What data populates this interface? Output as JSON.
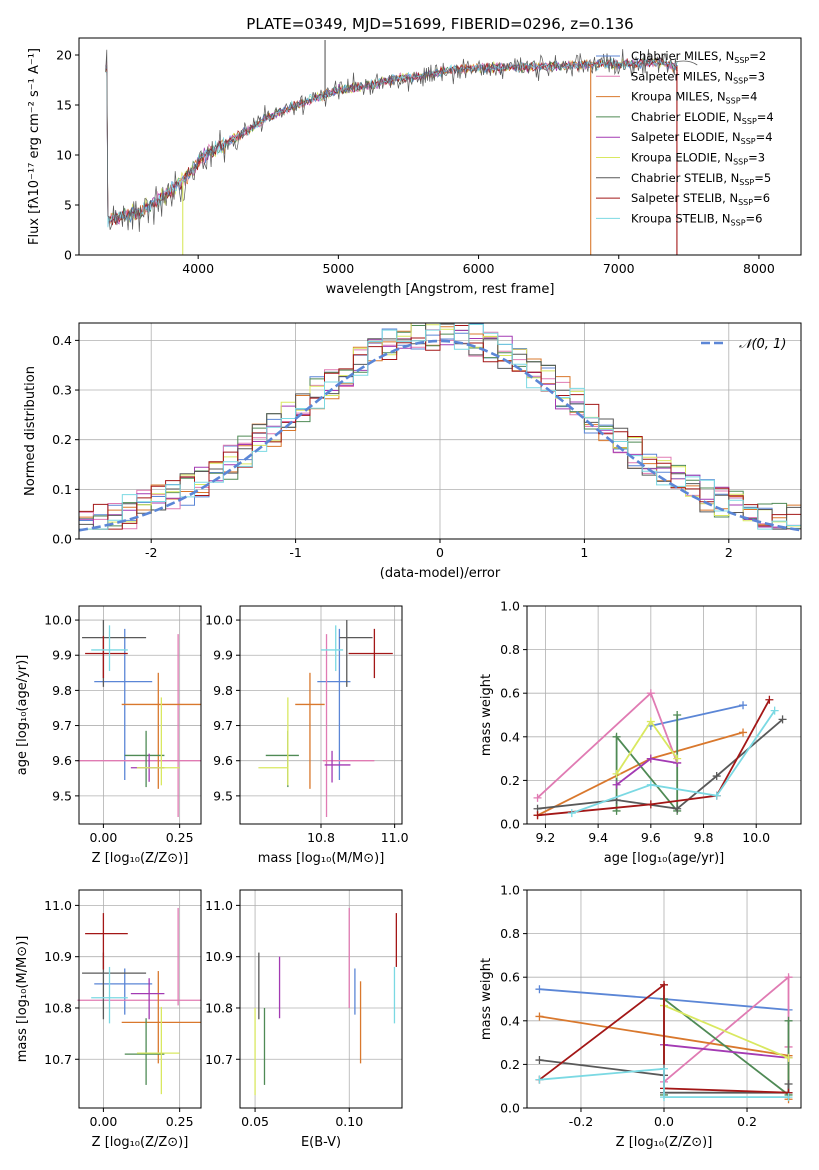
{
  "title": "PLATE=0349, MJD=51699, FIBERID=0296, z=0.136",
  "colors": {
    "chabrier_miles": "#5b86d6",
    "salpeter_miles": "#e07bb3",
    "kroupa_miles": "#d9782d",
    "chabrier_elodie": "#4f8a55",
    "salpeter_elodie": "#a33ab3",
    "kroupa_elodie": "#d9e860",
    "chabrier_stelib": "#595959",
    "salpeter_stelib": "#a31717",
    "kroupa_stelib": "#7bd9e3",
    "normal_curve": "#5b86d6"
  },
  "chart_data": [
    {
      "id": "spectrum",
      "type": "line",
      "xlabel": "wavelength [Angstrom, rest frame]",
      "ylabel": "Flux [fλ10⁻¹⁷ erg cm⁻² s⁻¹ A⁻¹]",
      "xlim": [
        3150,
        8300
      ],
      "ylim": [
        0,
        21.7
      ],
      "xticks": [
        4000,
        5000,
        6000,
        7000,
        8000
      ],
      "yticks": [
        0,
        5,
        10,
        15,
        20
      ],
      "continuum": {
        "x": [
          3350,
          3600,
          3900,
          4050,
          4300,
          4500,
          4800,
          5000,
          5200,
          5400,
          5600,
          5800,
          6000,
          6300,
          6600,
          6900,
          7100,
          7300,
          7400
        ],
        "y": [
          3.5,
          4.4,
          7.5,
          10.0,
          12.0,
          13.8,
          15.5,
          16.5,
          16.9,
          17.6,
          17.9,
          18.5,
          18.7,
          18.8,
          18.9,
          19.1,
          19.1,
          19.3,
          18.8
        ]
      },
      "spikes": [
        {
          "x": 4905,
          "y": 21.5
        },
        {
          "x": 6800,
          "y": 0
        },
        {
          "x": 7415,
          "y": 0
        },
        {
          "x": 3890,
          "y": 0
        }
      ],
      "legend_position": "upper right",
      "legend": [
        {
          "label": "Chabrier MILES, N",
          "sub": "SSP",
          "eq": "=2",
          "color_key": "chabrier_miles"
        },
        {
          "label": "Salpeter MILES, N",
          "sub": "SSP",
          "eq": "=3",
          "color_key": "salpeter_miles"
        },
        {
          "label": "Kroupa MILES, N",
          "sub": "SSP",
          "eq": "=4",
          "color_key": "kroupa_miles"
        },
        {
          "label": "Chabrier ELODIE, N",
          "sub": "SSP",
          "eq": "=4",
          "color_key": "chabrier_elodie"
        },
        {
          "label": "Salpeter ELODIE, N",
          "sub": "SSP",
          "eq": "=4",
          "color_key": "salpeter_elodie"
        },
        {
          "label": "Kroupa ELODIE, N",
          "sub": "SSP",
          "eq": "=3",
          "color_key": "kroupa_elodie"
        },
        {
          "label": "Chabrier STELIB, N",
          "sub": "SSP",
          "eq": "=5",
          "color_key": "chabrier_stelib"
        },
        {
          "label": "Salpeter STELIB, N",
          "sub": "SSP",
          "eq": "=6",
          "color_key": "salpeter_stelib"
        },
        {
          "label": "Kroupa STELIB, N",
          "sub": "SSP",
          "eq": "=6",
          "color_key": "kroupa_stelib"
        }
      ]
    },
    {
      "id": "residuals",
      "type": "step",
      "xlabel": "(data-model)/error",
      "ylabel": "Normed distribution",
      "xlim": [
        -2.5,
        2.5
      ],
      "ylim": [
        0,
        0.435
      ],
      "xticks": [
        -2,
        -1,
        0,
        1,
        2
      ],
      "yticks": [
        0.0,
        0.1,
        0.2,
        0.3,
        0.4
      ],
      "bin_width": 0.1,
      "legend": [
        {
          "label": "𝒩(0, 1)",
          "color_key": "normal_curve",
          "style": "dashed"
        }
      ],
      "legend_position": "upper right"
    },
    {
      "id": "age_vs_Z",
      "type": "errorbar",
      "xlabel": "Z [log₁₀(Z/Z⊙)]",
      "ylabel": "age  [log₁₀(age/yr)]",
      "xlim": [
        -0.08,
        0.32
      ],
      "ylim": [
        9.42,
        10.04
      ],
      "xticks": [
        0.0,
        0.25
      ],
      "yticks": [
        9.5,
        9.6,
        9.7,
        9.8,
        9.9,
        10.0
      ],
      "points": [
        {
          "k": "chabrier_miles",
          "x": 0.07,
          "y": 9.825,
          "xe": [
            0.1,
            0.09
          ],
          "ye": [
            0.28,
            0.15
          ]
        },
        {
          "k": "salpeter_miles",
          "x": 0.245,
          "y": 9.6,
          "xe": [
            0.33,
            0.075
          ],
          "ye": [
            0.16,
            0.36
          ]
        },
        {
          "k": "kroupa_miles",
          "x": 0.18,
          "y": 9.76,
          "xe": [
            0.12,
            0.14
          ],
          "ye": [
            0.24,
            0.09
          ]
        },
        {
          "k": "chabrier_elodie",
          "x": 0.14,
          "y": 9.615,
          "xe": [
            0.07,
            0.06
          ],
          "ye": [
            0.09,
            0.07
          ]
        },
        {
          "k": "salpeter_elodie",
          "x": 0.15,
          "y": 9.58,
          "xe": [
            0.06,
            0.05
          ],
          "ye": [
            0.04,
            0.04
          ]
        },
        {
          "k": "kroupa_elodie",
          "x": 0.19,
          "y": 9.58,
          "xe": [
            0.08,
            0.06
          ],
          "ye": [
            0.05,
            0.2
          ]
        },
        {
          "k": "chabrier_stelib",
          "x": 0.0,
          "y": 9.95,
          "xe": [
            0.07,
            0.14
          ],
          "ye": [
            0.14,
            0.05
          ]
        },
        {
          "k": "salpeter_stelib",
          "x": 0.0,
          "y": 9.905,
          "xe": [
            0.06,
            0.08
          ],
          "ye": [
            0.07,
            0.05
          ]
        },
        {
          "k": "kroupa_stelib",
          "x": 0.02,
          "y": 9.915,
          "xe": [
            0.06,
            0.06
          ],
          "ye": [
            0.06,
            0.07
          ]
        }
      ]
    },
    {
      "id": "age_vs_mass",
      "type": "errorbar",
      "xlabel": "mass [log₁₀(M/M⊙)]",
      "ylabel": "",
      "xlim": [
        10.58,
        11.02
      ],
      "ylim": [
        9.42,
        10.04
      ],
      "xticks": [
        10.8,
        11.0
      ],
      "yticks": [
        9.5,
        9.6,
        9.7,
        9.8,
        9.9,
        10.0
      ],
      "points": [
        {
          "k": "chabrier_miles",
          "x": 10.85,
          "y": 9.825,
          "xe": [
            0.06,
            0.03
          ],
          "ye": [
            0.28,
            0.15
          ]
        },
        {
          "k": "salpeter_miles",
          "x": 10.815,
          "y": 9.6,
          "xe": [
            0.01,
            0.13
          ],
          "ye": [
            0.16,
            0.36
          ]
        },
        {
          "k": "kroupa_miles",
          "x": 10.77,
          "y": 9.76,
          "xe": [
            0.04,
            0.04
          ],
          "ye": [
            0.24,
            0.09
          ]
        },
        {
          "k": "chabrier_elodie",
          "x": 10.71,
          "y": 9.615,
          "xe": [
            0.06,
            0.03
          ],
          "ye": [
            0.09,
            0.07
          ]
        },
        {
          "k": "salpeter_elodie",
          "x": 10.83,
          "y": 9.588,
          "xe": [
            0.02,
            0.05
          ],
          "ye": [
            0.05,
            0.04
          ]
        },
        {
          "k": "kroupa_elodie",
          "x": 10.71,
          "y": 9.58,
          "xe": [
            0.08,
            0.0
          ],
          "ye": [
            0.05,
            0.2
          ]
        },
        {
          "k": "chabrier_stelib",
          "x": 10.87,
          "y": 9.95,
          "xe": [
            0.02,
            0.07
          ],
          "ye": [
            0.14,
            0.05
          ]
        },
        {
          "k": "salpeter_stelib",
          "x": 10.945,
          "y": 9.905,
          "xe": [
            0.07,
            0.05
          ],
          "ye": [
            0.07,
            0.07
          ]
        },
        {
          "k": "kroupa_stelib",
          "x": 10.84,
          "y": 9.915,
          "xe": [
            0.04,
            0.02
          ],
          "ye": [
            0.06,
            0.07
          ]
        }
      ]
    },
    {
      "id": "weight_vs_age",
      "type": "line",
      "xlabel": "age  [log₁₀(age/yr)]",
      "ylabel": "mass weight",
      "xlim": [
        9.13,
        10.17
      ],
      "ylim": [
        0,
        1.0
      ],
      "xticks": [
        9.2,
        9.4,
        9.6,
        9.8,
        10.0
      ],
      "yticks": [
        0.0,
        0.2,
        0.4,
        0.6,
        0.8,
        1.0
      ],
      "series": [
        {
          "k": "chabrier_miles",
          "x": [
            9.6,
            9.95
          ],
          "y": [
            0.45,
            0.545
          ]
        },
        {
          "k": "salpeter_miles",
          "x": [
            9.17,
            9.6,
            9.7
          ],
          "y": [
            0.12,
            0.6,
            0.28
          ]
        },
        {
          "k": "kroupa_miles",
          "x": [
            9.17,
            9.6,
            9.95
          ],
          "y": [
            0.04,
            0.3,
            0.42
          ]
        },
        {
          "k": "chabrier_elodie",
          "x": [
            9.47,
            9.47,
            9.7,
            9.7
          ],
          "y": [
            0.06,
            0.4,
            0.06,
            0.5
          ]
        },
        {
          "k": "salpeter_elodie",
          "x": [
            9.47,
            9.6,
            9.7
          ],
          "y": [
            0.18,
            0.3,
            0.28
          ]
        },
        {
          "k": "kroupa_elodie",
          "x": [
            9.47,
            9.6,
            9.7
          ],
          "y": [
            0.23,
            0.47,
            0.3
          ]
        },
        {
          "k": "chabrier_stelib",
          "x": [
            9.17,
            9.47,
            9.7,
            9.85,
            10.1
          ],
          "y": [
            0.07,
            0.11,
            0.07,
            0.22,
            0.48
          ]
        },
        {
          "k": "salpeter_stelib",
          "x": [
            9.17,
            9.6,
            9.85,
            10.05
          ],
          "y": [
            0.04,
            0.09,
            0.13,
            0.57
          ]
        },
        {
          "k": "kroupa_stelib",
          "x": [
            9.3,
            9.6,
            9.85,
            10.07
          ],
          "y": [
            0.05,
            0.18,
            0.13,
            0.52
          ]
        }
      ]
    },
    {
      "id": "mass_vs_Z",
      "type": "errorbar",
      "xlabel": "Z [log₁₀(Z/Z⊙)]",
      "ylabel": "mass [log₁₀(M/M⊙)]",
      "xlim": [
        -0.08,
        0.32
      ],
      "ylim": [
        10.605,
        11.03
      ],
      "xticks": [
        0.0,
        0.25
      ],
      "yticks": [
        10.7,
        10.8,
        10.9,
        11.0
      ],
      "points": [
        {
          "k": "chabrier_miles",
          "x": 0.07,
          "y": 10.847,
          "xe": [
            0.1,
            0.09
          ],
          "ye": [
            0.06,
            0.03
          ]
        },
        {
          "k": "salpeter_miles",
          "x": 0.245,
          "y": 10.815,
          "xe": [
            0.33,
            0.075
          ],
          "ye": [
            0.01,
            0.18
          ]
        },
        {
          "k": "kroupa_miles",
          "x": 0.18,
          "y": 10.772,
          "xe": [
            0.12,
            0.14
          ],
          "ye": [
            0.08,
            0.1
          ]
        },
        {
          "k": "chabrier_elodie",
          "x": 0.14,
          "y": 10.71,
          "xe": [
            0.07,
            0.06
          ],
          "ye": [
            0.06,
            0.07
          ]
        },
        {
          "k": "salpeter_elodie",
          "x": 0.15,
          "y": 10.828,
          "xe": [
            0.06,
            0.05
          ],
          "ye": [
            0.05,
            0.03
          ]
        },
        {
          "k": "kroupa_elodie",
          "x": 0.19,
          "y": 10.712,
          "xe": [
            0.08,
            0.06
          ],
          "ye": [
            0.08,
            0.09
          ]
        },
        {
          "k": "chabrier_stelib",
          "x": 0.0,
          "y": 10.868,
          "xe": [
            0.07,
            0.14
          ],
          "ye": [
            0.09,
            0.04
          ]
        },
        {
          "k": "salpeter_stelib",
          "x": 0.0,
          "y": 10.945,
          "xe": [
            0.06,
            0.08
          ],
          "ye": [
            0.07,
            0.04
          ]
        },
        {
          "k": "kroupa_stelib",
          "x": 0.02,
          "y": 10.82,
          "xe": [
            0.06,
            0.06
          ],
          "ye": [
            0.05,
            0.06
          ]
        }
      ]
    },
    {
      "id": "mass_vs_ebv",
      "type": "errorbar",
      "xlabel": "E(B-V)",
      "ylabel": "",
      "xlim": [
        0.042,
        0.128
      ],
      "ylim": [
        10.605,
        11.03
      ],
      "xticks": [
        0.05,
        0.1
      ],
      "yticks": [
        10.7,
        10.8,
        10.9,
        11.0
      ],
      "points": [
        {
          "k": "chabrier_miles",
          "x": 0.103,
          "y": 10.847,
          "xe": [
            0,
            0
          ],
          "ye": [
            0.06,
            0.03
          ]
        },
        {
          "k": "salpeter_miles",
          "x": 0.1,
          "y": 10.9,
          "xe": [
            0,
            0
          ],
          "ye": [
            0.1,
            0.095
          ]
        },
        {
          "k": "kroupa_miles",
          "x": 0.106,
          "y": 10.772,
          "xe": [
            0,
            0
          ],
          "ye": [
            0.08,
            0.08
          ]
        },
        {
          "k": "chabrier_elodie",
          "x": 0.055,
          "y": 10.72,
          "xe": [
            0,
            0
          ],
          "ye": [
            0.07,
            0.08
          ]
        },
        {
          "k": "salpeter_elodie",
          "x": 0.063,
          "y": 10.84,
          "xe": [
            0,
            0
          ],
          "ye": [
            0.06,
            0.06
          ]
        },
        {
          "k": "kroupa_elodie",
          "x": 0.05,
          "y": 10.72,
          "xe": [
            0,
            0
          ],
          "ye": [
            0.09,
            0.08
          ]
        },
        {
          "k": "chabrier_stelib",
          "x": 0.052,
          "y": 10.868,
          "xe": [
            0,
            0
          ],
          "ye": [
            0.09,
            0.04
          ]
        },
        {
          "k": "salpeter_stelib",
          "x": 0.125,
          "y": 10.94,
          "xe": [
            0,
            0
          ],
          "ye": [
            0.06,
            0.045
          ]
        },
        {
          "k": "kroupa_stelib",
          "x": 0.124,
          "y": 10.82,
          "xe": [
            0,
            0
          ],
          "ye": [
            0.05,
            0.06
          ]
        }
      ]
    },
    {
      "id": "weight_vs_Z",
      "type": "line",
      "xlabel": "Z [log₁₀(Z/Z⊙)]",
      "ylabel": "mass weight",
      "xlim": [
        -0.33,
        0.33
      ],
      "ylim": [
        0,
        1.0
      ],
      "xticks": [
        -0.2,
        0.0,
        0.2
      ],
      "yticks": [
        0.0,
        0.2,
        0.4,
        0.6,
        0.8,
        1.0
      ],
      "series": [
        {
          "k": "chabrier_miles",
          "x": [
            -0.3,
            0.0,
            0.3
          ],
          "y": [
            0.545,
            0.5,
            0.45
          ]
        },
        {
          "k": "salpeter_miles",
          "x": [
            0.0,
            0.3,
            0.3
          ],
          "y": [
            0.12,
            0.6,
            0.28
          ]
        },
        {
          "k": "kroupa_miles",
          "x": [
            -0.3,
            0.3,
            0.3
          ],
          "y": [
            0.42,
            0.24,
            0.04
          ]
        },
        {
          "k": "chabrier_elodie",
          "x": [
            0.0,
            0.0,
            0.3,
            0.3
          ],
          "y": [
            0.06,
            0.5,
            0.06,
            0.4
          ]
        },
        {
          "k": "salpeter_elodie",
          "x": [
            0.0,
            0.3
          ],
          "y": [
            0.29,
            0.23
          ]
        },
        {
          "k": "kroupa_elodie",
          "x": [
            0.0,
            0.3
          ],
          "y": [
            0.47,
            0.23
          ]
        },
        {
          "k": "chabrier_stelib",
          "x": [
            -0.3,
            0.0,
            0.0,
            0.3,
            0.3
          ],
          "y": [
            0.22,
            0.15,
            0.07,
            0.07,
            0.11
          ]
        },
        {
          "k": "salpeter_stelib",
          "x": [
            -0.3,
            0.0,
            0.0,
            0.3
          ],
          "y": [
            0.13,
            0.565,
            0.09,
            0.07
          ]
        },
        {
          "k": "kroupa_stelib",
          "x": [
            -0.3,
            0.0,
            0.0,
            0.3
          ],
          "y": [
            0.13,
            0.18,
            0.05,
            0.05
          ]
        }
      ]
    }
  ]
}
